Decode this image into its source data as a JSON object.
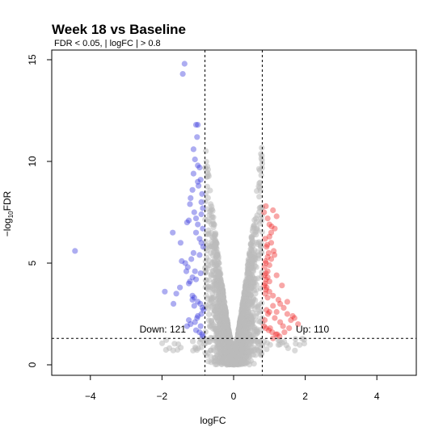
{
  "chart_data": {
    "type": "scatter",
    "title": "Week 18 vs Baseline",
    "subtitle": "FDR < 0.05,  | logFC | > 0.8",
    "xlabel": "logFC",
    "ylabel_prefix": "−log",
    "ylabel_sub": "10",
    "ylabel_suffix": "FDR",
    "xlim": [
      -5,
      5
    ],
    "ylim": [
      0,
      15.5
    ],
    "xticks": [
      -4,
      -2,
      0,
      2,
      4
    ],
    "xtick_labels": [
      "−4",
      "−2",
      "0",
      "2",
      "4"
    ],
    "yticks": [
      0,
      5,
      10,
      15
    ],
    "ytick_labels": [
      "0",
      "5",
      "10",
      "15"
    ],
    "logfc_threshold": 0.8,
    "fdr_threshold_line": 1.3,
    "grid": false,
    "colors": {
      "down": "#3333dd",
      "up": "#ee2222",
      "ns": "#bbbbbb"
    },
    "annotations": {
      "down": "Down: 121",
      "up": "Up: 110"
    },
    "series": [
      {
        "group": "down",
        "x": [
          -1.37,
          -1.42,
          -1.05,
          -1.0,
          -1.02,
          -1.12,
          -1.08,
          -1.0,
          -0.95,
          -4.43,
          -1.92,
          -1.68,
          -1.2,
          -1.15,
          -1.22,
          -1.25,
          -1.3,
          -1.1,
          -1.05,
          -0.98,
          -0.92,
          -0.88,
          -0.86,
          -0.9,
          -1.0,
          -1.05,
          -0.95,
          -0.9,
          -0.85,
          -1.12,
          -1.18,
          -1.35,
          -1.28,
          -1.08,
          -0.92,
          -1.15,
          -1.25,
          -1.5,
          -1.6,
          -1.1,
          -1.0,
          -0.93,
          -0.87,
          -0.84,
          -0.9,
          -1.02,
          -1.08,
          -1.2,
          -1.3,
          -1.05,
          -0.95,
          -0.88,
          -0.86,
          -0.92,
          -1.0,
          -1.1,
          -1.15,
          -1.22,
          -1.32,
          -1.45,
          -1.7,
          -1.48,
          -1.12,
          -1.0,
          -0.9,
          -0.86,
          -0.95,
          -1.05,
          -1.15,
          -1.25
        ],
        "y": [
          14.8,
          14.3,
          11.8,
          11.8,
          11.2,
          10.6,
          10.1,
          9.8,
          9.7,
          5.6,
          3.6,
          3.0,
          8.2,
          8.6,
          7.9,
          7.1,
          7.0,
          7.5,
          7.2,
          8.8,
          9.1,
          8.4,
          7.7,
          7.4,
          6.9,
          6.5,
          6.2,
          6.0,
          5.8,
          5.5,
          5.2,
          5.0,
          4.8,
          4.6,
          4.5,
          4.3,
          4.0,
          3.8,
          3.5,
          3.3,
          3.1,
          3.0,
          2.8,
          2.7,
          2.5,
          2.3,
          2.1,
          2.0,
          1.9,
          1.7,
          1.6,
          1.5,
          1.4,
          1.9,
          2.4,
          2.9,
          3.4,
          4.1,
          4.6,
          5.1,
          6.5,
          6.0,
          9.4,
          9.0,
          8.0,
          6.7,
          5.4,
          4.2,
          3.2,
          2.2
        ]
      },
      {
        "group": "up",
        "x": [
          0.85,
          0.9,
          0.95,
          1.0,
          1.05,
          0.88,
          0.92,
          0.98,
          1.1,
          1.2,
          1.15,
          1.05,
          0.95,
          0.9,
          0.86,
          0.9,
          0.95,
          1.0,
          0.88,
          0.92,
          1.0,
          1.1,
          1.25,
          1.3,
          1.4,
          1.5,
          1.2,
          1.1,
          0.95,
          0.88,
          0.86,
          0.9,
          0.95,
          1.0,
          1.05,
          1.12,
          1.2,
          1.35,
          1.5,
          1.65,
          1.8,
          1.3,
          1.15,
          1.0,
          0.92,
          0.87,
          0.85,
          0.9,
          0.98,
          1.08,
          1.18,
          1.28,
          1.42,
          1.55,
          1.6,
          1.7,
          1.38,
          1.22,
          1.1,
          1.02,
          0.96,
          0.9,
          0.86,
          0.89,
          0.94,
          1.0,
          1.06,
          1.14
        ],
        "y": [
          7.5,
          7.8,
          7.2,
          6.9,
          6.5,
          6.2,
          5.8,
          5.5,
          7.6,
          7.3,
          6.7,
          6.0,
          5.3,
          5.0,
          4.8,
          4.5,
          4.3,
          4.1,
          4.0,
          3.8,
          3.6,
          3.4,
          3.2,
          3.0,
          2.8,
          2.5,
          2.6,
          2.9,
          3.3,
          3.5,
          3.9,
          4.2,
          4.6,
          4.9,
          5.2,
          5.6,
          4.4,
          3.9,
          3.1,
          2.4,
          2.0,
          2.1,
          2.3,
          2.6,
          2.7,
          2.2,
          1.9,
          1.8,
          1.7,
          1.6,
          1.5,
          1.4,
          1.6,
          1.8,
          2.2,
          2.3,
          1.9,
          1.5,
          1.3,
          1.8,
          2.5,
          3.7,
          4.4,
          5.1,
          5.9,
          6.3,
          6.8,
          5.4
        ]
      }
    ]
  }
}
